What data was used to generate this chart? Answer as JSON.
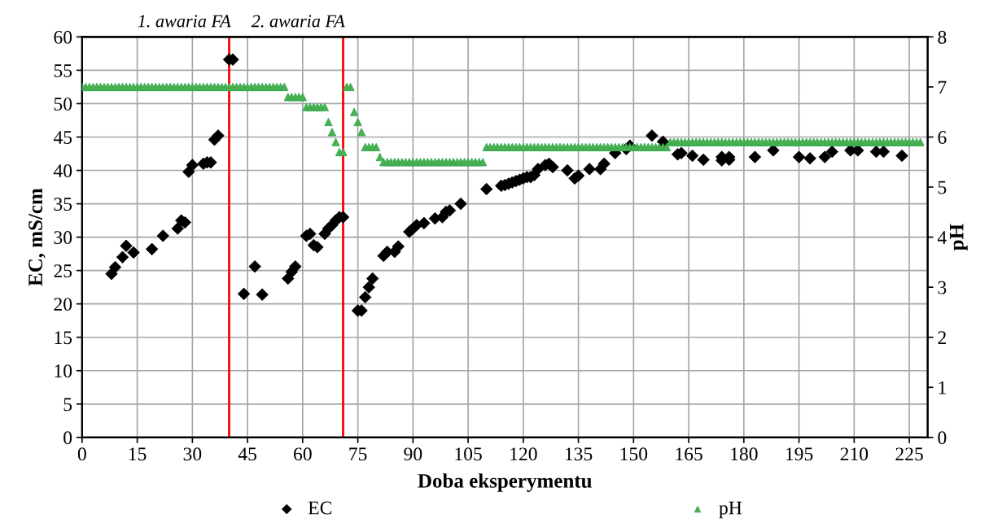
{
  "chart_data": {
    "type": "scatter",
    "xlabel": "Doba eksperymentu",
    "ylabel": "EC, mS/cm",
    "y2label": "pH",
    "xlim": [
      0,
      230
    ],
    "xticks": [
      0,
      15,
      30,
      45,
      60,
      75,
      90,
      105,
      120,
      135,
      150,
      165,
      180,
      195,
      210,
      225
    ],
    "ylim": [
      0,
      60
    ],
    "yticks": [
      0,
      5,
      10,
      15,
      20,
      25,
      30,
      35,
      40,
      45,
      50,
      55,
      60
    ],
    "y2lim": [
      0,
      8
    ],
    "y2ticks": [
      0,
      1,
      2,
      3,
      4,
      5,
      6,
      7,
      8
    ],
    "grid": true,
    "legend": "bottom",
    "ref_lines": [
      {
        "axis": "x",
        "value": 40,
        "label": "1. awaria FA",
        "color": "#ff0000"
      },
      {
        "axis": "x",
        "value": 71,
        "label": "2. awaria FA",
        "color": "#ff0000"
      }
    ],
    "series": [
      {
        "name": "EC",
        "color": "#000000",
        "marker": "diamond",
        "x": [
          8,
          9,
          11,
          12,
          14,
          19,
          22,
          26,
          27,
          28,
          29,
          30,
          33,
          34,
          35,
          36,
          37,
          40,
          41,
          44,
          47,
          49,
          56,
          57,
          58,
          61,
          62,
          63,
          64,
          66,
          67,
          68,
          69,
          70,
          71,
          75,
          76,
          77,
          78,
          79,
          82,
          83,
          85,
          86,
          89,
          90,
          91,
          93,
          96,
          98,
          99,
          100,
          103,
          110,
          114,
          115,
          116,
          117,
          118,
          119,
          120,
          121,
          122,
          123,
          124,
          126,
          127,
          128,
          132,
          134,
          135,
          138,
          141,
          142,
          145,
          148,
          149,
          155,
          158,
          162,
          163,
          166,
          169,
          174,
          174,
          176,
          176,
          183,
          188,
          195,
          198,
          202,
          204,
          209,
          211,
          216,
          218,
          223
        ],
        "values": [
          24.5,
          25.5,
          27,
          28.7,
          27.7,
          28.2,
          30.2,
          31.3,
          32.5,
          32.2,
          39.8,
          40.8,
          41,
          41.2,
          41.2,
          44.6,
          45.2,
          56.6,
          56.6,
          21.5,
          25.6,
          21.4,
          23.8,
          24.8,
          25.6,
          30.2,
          30.5,
          28.8,
          28.5,
          30.5,
          31.3,
          31.8,
          32.5,
          33,
          33,
          19,
          19,
          21,
          22.5,
          23.8,
          27.2,
          27.8,
          27.8,
          28.6,
          30.8,
          31.3,
          31.8,
          32.1,
          32.8,
          33,
          33.8,
          34,
          35,
          37.2,
          37.7,
          37.8,
          38,
          38.2,
          38.4,
          38.6,
          38.8,
          39,
          39,
          39.3,
          40.2,
          40.8,
          41,
          40.5,
          40,
          38.8,
          39.2,
          40.2,
          40.2,
          41,
          42.6,
          43.2,
          43.7,
          45.2,
          44.3,
          42.4,
          42.6,
          42.2,
          41.6,
          41.5,
          42,
          41.6,
          42,
          42,
          43,
          42,
          41.8,
          42,
          42.8,
          43,
          43,
          42.8,
          42.8,
          42.2
        ]
      },
      {
        "name": "pH",
        "color": "#4caf50",
        "marker": "triangle",
        "axis": "y2",
        "x": [
          0,
          1,
          2,
          3,
          4,
          5,
          6,
          7,
          8,
          9,
          10,
          11,
          12,
          13,
          14,
          15,
          16,
          17,
          18,
          19,
          20,
          21,
          22,
          23,
          24,
          25,
          26,
          27,
          28,
          29,
          30,
          31,
          32,
          33,
          34,
          35,
          36,
          37,
          38,
          39,
          40,
          41,
          42,
          43,
          44,
          45,
          46,
          47,
          48,
          49,
          50,
          51,
          52,
          53,
          54,
          55,
          56,
          57,
          58,
          59,
          60,
          61,
          62,
          63,
          64,
          65,
          66,
          67,
          68,
          69,
          70,
          71,
          72,
          73,
          74,
          75,
          76,
          77,
          78,
          79,
          80,
          81,
          82,
          83,
          84,
          85,
          86,
          87,
          88,
          89,
          90,
          91,
          92,
          93,
          94,
          95,
          96,
          97,
          98,
          99,
          100,
          101,
          102,
          103,
          104,
          105,
          106,
          107,
          108,
          109,
          110,
          111,
          112,
          113,
          114,
          115,
          116,
          117,
          118,
          119,
          120,
          121,
          122,
          123,
          124,
          125,
          126,
          127,
          128,
          129,
          130,
          131,
          132,
          133,
          134,
          135,
          136,
          137,
          138,
          139,
          140,
          141,
          142,
          143,
          144,
          145,
          146,
          147,
          148,
          149,
          150,
          151,
          152,
          153,
          154,
          155,
          156,
          157,
          158,
          159,
          160,
          161,
          162,
          163,
          164,
          165,
          166,
          167,
          168,
          169,
          170,
          171,
          172,
          173,
          174,
          175,
          176,
          177,
          178,
          179,
          180,
          181,
          182,
          183,
          184,
          185,
          186,
          187,
          188,
          189,
          190,
          191,
          192,
          193,
          194,
          195,
          196,
          197,
          198,
          199,
          200,
          201,
          202,
          203,
          204,
          205,
          206,
          207,
          208,
          209,
          210,
          211,
          212,
          213,
          214,
          215,
          216,
          217,
          218,
          219,
          220,
          221,
          222,
          223,
          224,
          225,
          226,
          227,
          228
        ],
        "values": [
          7,
          7,
          7,
          7,
          7,
          7,
          7,
          7,
          7,
          7,
          7,
          7,
          7,
          7,
          7,
          7,
          7,
          7,
          7,
          7,
          7,
          7,
          7,
          7,
          7,
          7,
          7,
          7,
          7,
          7,
          7,
          7,
          7,
          7,
          7,
          7,
          7,
          7,
          7,
          7,
          7,
          7,
          7,
          7,
          7,
          7,
          7,
          7,
          7,
          7,
          7,
          7,
          7,
          7,
          7,
          7,
          6.8,
          6.8,
          6.8,
          6.8,
          6.8,
          6.6,
          6.6,
          6.6,
          6.6,
          6.6,
          6.6,
          6.3,
          6.1,
          5.9,
          5.7,
          5.7,
          7,
          7,
          6.5,
          6.3,
          6.1,
          5.8,
          5.8,
          5.8,
          5.8,
          5.6,
          5.5,
          5.5,
          5.5,
          5.5,
          5.5,
          5.5,
          5.5,
          5.5,
          5.5,
          5.5,
          5.5,
          5.5,
          5.5,
          5.5,
          5.5,
          5.5,
          5.5,
          5.5,
          5.5,
          5.5,
          5.5,
          5.5,
          5.5,
          5.5,
          5.5,
          5.5,
          5.5,
          5.5,
          5.8,
          5.8,
          5.8,
          5.8,
          5.8,
          5.8,
          5.8,
          5.8,
          5.8,
          5.8,
          5.8,
          5.8,
          5.8,
          5.8,
          5.8,
          5.8,
          5.8,
          5.8,
          5.8,
          5.8,
          5.8,
          5.8,
          5.8,
          5.8,
          5.8,
          5.8,
          5.8,
          5.8,
          5.8,
          5.8,
          5.8,
          5.8,
          5.8,
          5.8,
          5.8,
          5.8,
          5.8,
          5.8,
          5.8,
          5.8,
          5.8,
          5.8,
          5.8,
          5.8,
          5.8,
          5.8,
          5.8,
          5.8,
          5.8,
          5.8,
          5.9,
          5.9,
          5.9,
          5.9,
          5.9,
          5.9,
          5.9,
          5.9,
          5.9,
          5.9,
          5.9,
          5.9,
          5.9,
          5.9,
          5.9,
          5.9,
          5.9,
          5.9,
          5.9,
          5.9,
          5.9,
          5.9,
          5.9,
          5.9,
          5.9,
          5.9,
          5.9,
          5.9,
          5.9,
          5.9,
          5.9,
          5.9,
          5.9,
          5.9,
          5.9,
          5.9,
          5.9,
          5.9,
          5.9,
          5.9,
          5.9,
          5.9,
          5.9,
          5.9,
          5.9,
          5.9,
          5.9,
          5.9,
          5.9,
          5.9,
          5.9,
          5.9,
          5.9,
          5.9,
          5.9,
          5.9,
          5.9,
          5.9,
          5.9,
          5.9,
          5.9,
          5.9,
          5.9,
          5.9,
          5.9,
          5.9,
          5.9,
          5.9,
          5.9
        ]
      }
    ]
  }
}
